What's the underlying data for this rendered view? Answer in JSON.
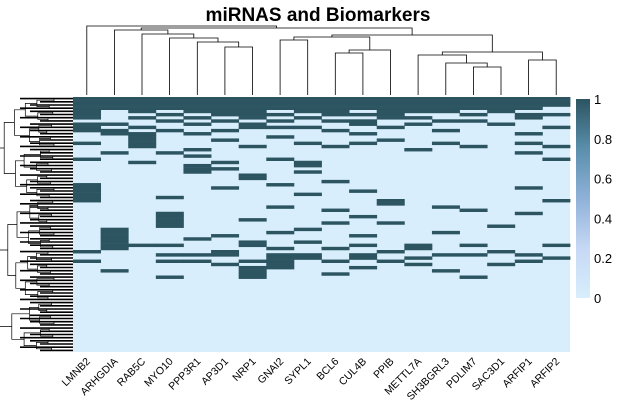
{
  "chart_data": {
    "type": "heatmap",
    "title": "miRNAS and Biomarkers",
    "xlabel": "",
    "ylabel": "",
    "columns": [
      "LMNB2",
      "ARHGDIA",
      "RAB5C",
      "MYO10",
      "PPP3R1",
      "AP3D1",
      "NRP1",
      "GNAI2",
      "SYPL1",
      "BCL6",
      "CUL4B",
      "PPIB",
      "METTL7A",
      "SH3BGRL3",
      "PDLIM7",
      "SAC3D1",
      "ARFIP1",
      "ARFIP2"
    ],
    "value_range": [
      0,
      1
    ],
    "colorbar": {
      "ticks": [
        "0",
        "0.2",
        "0.4",
        "0.6",
        "0.8",
        "1"
      ],
      "colors": [
        "#d8eefc",
        "#c6d8f5",
        "#8fb1d8",
        "#5a8fac",
        "#2c5461"
      ]
    },
    "row_count": 80,
    "cells_value_1": [
      [
        0,
        0
      ],
      [
        0,
        1
      ],
      [
        0,
        2
      ],
      [
        0,
        3
      ],
      [
        0,
        4
      ],
      [
        0,
        5
      ],
      [
        0,
        6
      ],
      [
        0,
        7
      ],
      [
        0,
        8
      ],
      [
        0,
        9
      ],
      [
        0,
        10
      ],
      [
        0,
        11
      ],
      [
        0,
        12
      ],
      [
        0,
        13
      ],
      [
        0,
        14
      ],
      [
        0,
        15
      ],
      [
        0,
        16
      ],
      [
        0,
        17
      ],
      [
        1,
        0
      ],
      [
        1,
        1
      ],
      [
        1,
        2
      ],
      [
        1,
        3
      ],
      [
        1,
        4
      ],
      [
        1,
        5
      ],
      [
        1,
        6
      ],
      [
        1,
        7
      ],
      [
        1,
        8
      ],
      [
        1,
        9
      ],
      [
        1,
        10
      ],
      [
        1,
        11
      ],
      [
        1,
        12
      ],
      [
        1,
        13
      ],
      [
        1,
        14
      ],
      [
        1,
        15
      ],
      [
        1,
        16
      ],
      [
        1,
        17
      ],
      [
        2,
        0
      ],
      [
        2,
        1
      ],
      [
        2,
        2
      ],
      [
        2,
        3
      ],
      [
        2,
        4
      ],
      [
        2,
        5
      ],
      [
        2,
        6
      ],
      [
        2,
        7
      ],
      [
        2,
        8
      ],
      [
        2,
        9
      ],
      [
        2,
        10
      ],
      [
        2,
        11
      ],
      [
        2,
        12
      ],
      [
        2,
        13
      ],
      [
        2,
        14
      ],
      [
        2,
        15
      ],
      [
        2,
        16
      ],
      [
        2,
        17
      ],
      [
        3,
        0
      ],
      [
        3,
        1
      ],
      [
        3,
        2
      ],
      [
        3,
        3
      ],
      [
        3,
        4
      ],
      [
        3,
        5
      ],
      [
        3,
        6
      ],
      [
        3,
        7
      ],
      [
        3,
        8
      ],
      [
        3,
        9
      ],
      [
        3,
        10
      ],
      [
        3,
        11
      ],
      [
        3,
        12
      ],
      [
        3,
        13
      ],
      [
        3,
        14
      ],
      [
        3,
        15
      ],
      [
        3,
        16
      ],
      [
        4,
        0
      ],
      [
        4,
        2
      ],
      [
        4,
        4
      ],
      [
        4,
        5
      ],
      [
        4,
        6
      ],
      [
        4,
        8
      ],
      [
        4,
        9
      ],
      [
        4,
        11
      ],
      [
        4,
        12
      ],
      [
        4,
        13
      ],
      [
        4,
        15
      ],
      [
        5,
        0
      ],
      [
        5,
        3
      ],
      [
        5,
        5
      ],
      [
        5,
        6
      ],
      [
        5,
        7
      ],
      [
        5,
        9
      ],
      [
        5,
        10
      ],
      [
        5,
        11
      ],
      [
        5,
        14
      ],
      [
        5,
        16
      ],
      [
        5,
        17
      ],
      [
        6,
        0
      ],
      [
        6,
        2
      ],
      [
        6,
        4
      ],
      [
        6,
        6
      ],
      [
        6,
        8
      ],
      [
        6,
        11
      ],
      [
        6,
        12
      ],
      [
        6,
        16
      ],
      [
        7,
        3
      ],
      [
        7,
        5
      ],
      [
        7,
        7
      ],
      [
        7,
        9
      ],
      [
        7,
        10
      ],
      [
        7,
        13
      ],
      [
        7,
        14
      ],
      [
        8,
        0
      ],
      [
        8,
        1
      ],
      [
        8,
        4
      ],
      [
        8,
        6
      ],
      [
        8,
        10
      ],
      [
        8,
        12
      ],
      [
        8,
        15
      ],
      [
        9,
        0
      ],
      [
        9,
        2
      ],
      [
        9,
        6
      ],
      [
        9,
        7
      ],
      [
        9,
        8
      ],
      [
        9,
        11
      ],
      [
        9,
        17
      ],
      [
        10,
        0
      ],
      [
        10,
        1
      ],
      [
        10,
        3
      ],
      [
        10,
        5
      ],
      [
        10,
        9
      ],
      [
        10,
        13
      ],
      [
        11,
        1
      ],
      [
        11,
        2
      ],
      [
        11,
        4
      ],
      [
        11,
        10
      ],
      [
        11,
        16
      ],
      [
        12,
        2
      ],
      [
        12,
        7
      ],
      [
        13,
        2
      ],
      [
        13,
        5
      ],
      [
        13,
        11
      ],
      [
        14,
        0
      ],
      [
        14,
        2
      ],
      [
        14,
        8
      ],
      [
        14,
        10
      ],
      [
        14,
        13
      ],
      [
        14,
        16
      ],
      [
        15,
        2
      ],
      [
        15,
        6
      ],
      [
        15,
        9
      ],
      [
        15,
        14
      ],
      [
        15,
        17
      ],
      [
        16,
        4
      ],
      [
        16,
        12
      ],
      [
        17,
        1
      ],
      [
        17,
        3
      ],
      [
        17,
        16
      ],
      [
        18,
        4
      ],
      [
        19,
        0
      ],
      [
        19,
        7
      ],
      [
        19,
        17
      ],
      [
        20,
        2
      ],
      [
        20,
        5
      ],
      [
        20,
        8
      ],
      [
        21,
        4
      ],
      [
        21,
        8
      ],
      [
        22,
        4
      ],
      [
        22,
        5
      ],
      [
        23,
        4
      ],
      [
        23,
        8
      ],
      [
        24,
        6
      ],
      [
        25,
        6
      ],
      [
        26,
        9
      ],
      [
        27,
        0
      ],
      [
        27,
        7
      ],
      [
        28,
        0
      ],
      [
        28,
        5
      ],
      [
        28,
        16
      ],
      [
        29,
        0
      ],
      [
        29,
        10
      ],
      [
        30,
        0
      ],
      [
        30,
        8
      ],
      [
        31,
        0
      ],
      [
        31,
        3
      ],
      [
        32,
        0
      ],
      [
        32,
        11
      ],
      [
        32,
        17
      ],
      [
        33,
        11
      ],
      [
        34,
        7
      ],
      [
        34,
        13
      ],
      [
        35,
        9
      ],
      [
        35,
        14
      ],
      [
        36,
        3
      ],
      [
        36,
        16
      ],
      [
        37,
        3
      ],
      [
        37,
        10
      ],
      [
        38,
        3
      ],
      [
        38,
        6
      ],
      [
        39,
        3
      ],
      [
        39,
        9
      ],
      [
        39,
        11
      ],
      [
        40,
        3
      ],
      [
        40,
        15
      ],
      [
        41,
        1
      ],
      [
        41,
        8
      ],
      [
        42,
        1
      ],
      [
        42,
        7
      ],
      [
        42,
        13
      ],
      [
        43,
        1
      ],
      [
        43,
        5
      ],
      [
        43,
        10
      ],
      [
        44,
        1
      ],
      [
        44,
        4
      ],
      [
        45,
        1
      ],
      [
        45,
        6
      ],
      [
        45,
        8
      ],
      [
        46,
        1
      ],
      [
        46,
        2
      ],
      [
        46,
        3
      ],
      [
        46,
        6
      ],
      [
        46,
        10
      ],
      [
        46,
        12
      ],
      [
        46,
        14
      ],
      [
        46,
        17
      ],
      [
        47,
        1
      ],
      [
        47,
        7
      ],
      [
        47,
        9
      ],
      [
        47,
        12
      ],
      [
        48,
        0
      ],
      [
        48,
        5
      ],
      [
        48,
        11
      ],
      [
        48,
        15
      ],
      [
        49,
        3
      ],
      [
        49,
        4
      ],
      [
        49,
        5
      ],
      [
        49,
        7
      ],
      [
        49,
        8
      ],
      [
        49,
        10
      ],
      [
        49,
        13
      ],
      [
        49,
        14
      ],
      [
        49,
        16
      ],
      [
        50,
        7
      ],
      [
        50,
        8
      ],
      [
        50,
        10
      ],
      [
        50,
        12
      ],
      [
        50,
        17
      ],
      [
        51,
        0
      ],
      [
        51,
        3
      ],
      [
        51,
        4
      ],
      [
        51,
        6
      ],
      [
        51,
        7
      ],
      [
        51,
        9
      ],
      [
        51,
        11
      ],
      [
        51,
        16
      ],
      [
        52,
        5
      ],
      [
        52,
        7
      ],
      [
        52,
        12
      ],
      [
        52,
        15
      ],
      [
        53,
        6
      ],
      [
        53,
        7
      ],
      [
        53,
        10
      ],
      [
        54,
        1
      ],
      [
        54,
        6
      ],
      [
        54,
        13
      ],
      [
        55,
        6
      ],
      [
        55,
        9
      ],
      [
        56,
        3
      ],
      [
        56,
        6
      ],
      [
        56,
        14
      ]
    ]
  }
}
